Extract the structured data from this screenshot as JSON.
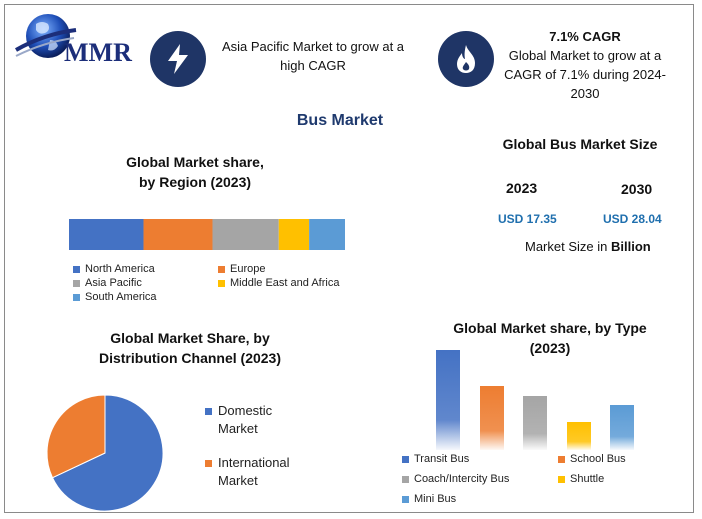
{
  "header": {
    "logo_text": "MMR",
    "callout_left": {
      "icon": "lightning-icon",
      "line1": "Asia Pacific Market to grow at a",
      "line2": "high CAGR"
    },
    "callout_right": {
      "icon": "flame-icon",
      "title": "7.1% CAGR",
      "line1": "Global Market to grow at a",
      "line2": "CAGR of 7.1% during 2024-",
      "line3": "2030"
    },
    "icon_color": "#1f3566"
  },
  "page_title": "Bus Market",
  "market_size": {
    "title": "Global Bus Market Size",
    "year_a": "2023",
    "value_a": "USD 17.35",
    "year_b": "2030",
    "value_b": "USD 28.04",
    "note_prefix": "Market Size in ",
    "note_unit": "Billion"
  },
  "chart_data": [
    {
      "type": "bar",
      "subtype": "stacked-horizontal-100",
      "title_line1": "Global Market share,",
      "title_line2": "by Region (2023)",
      "series": [
        {
          "name": "North America",
          "value": 27,
          "color": "#4472c4"
        },
        {
          "name": "Europe",
          "value": 25,
          "color": "#ed7d31"
        },
        {
          "name": "Asia Pacific",
          "value": 24,
          "color": "#a5a5a5"
        },
        {
          "name": "Middle East and Africa",
          "value": 11,
          "color": "#ffc000"
        },
        {
          "name": "South America",
          "value": 13,
          "color": "#5b9bd5"
        }
      ],
      "legend_placement": "bottom"
    },
    {
      "type": "pie",
      "title_line1": "Global Market Share, by",
      "title_line2": "Distribution Channel (2023)",
      "slices": [
        {
          "name_line1": "Domestic",
          "name_line2": "Market",
          "value": 68,
          "color": "#4472c4"
        },
        {
          "name_line1": "International",
          "name_line2": "Market",
          "value": 32,
          "color": "#ed7d31"
        }
      ],
      "legend_placement": "right"
    },
    {
      "type": "bar",
      "title_line1": "Global Market share, by Type",
      "title_line2": "(2023)",
      "categories": [
        "Transit Bus",
        "School Bus",
        "Coach/Intercity Bus",
        "Shuttle",
        "Mini Bus"
      ],
      "values": [
        100,
        64,
        54,
        28,
        45
      ],
      "colors": [
        "#4472c4",
        "#ed7d31",
        "#a5a5a5",
        "#ffc000",
        "#5b9bd5"
      ],
      "ylim": [
        0,
        100
      ],
      "grid": false,
      "legend_placement": "bottom"
    }
  ]
}
